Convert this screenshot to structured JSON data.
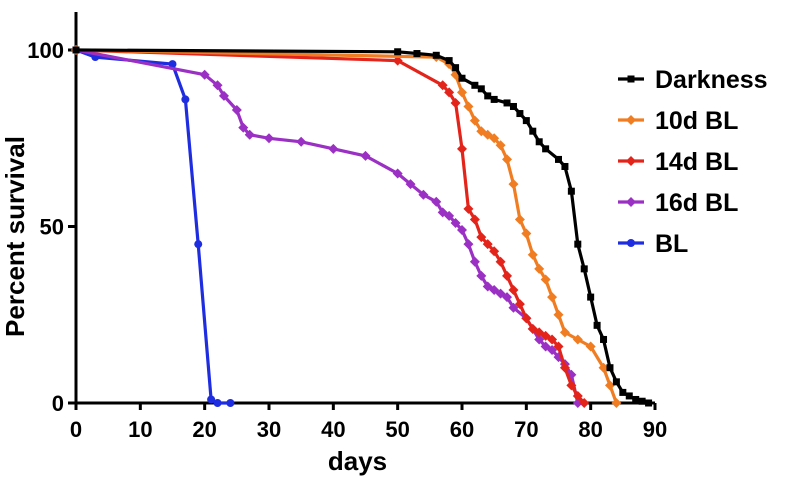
{
  "chart_data": {
    "type": "line",
    "title": "",
    "xlabel": "days",
    "ylabel": "Percent survival",
    "xlim": [
      0,
      90
    ],
    "ylim": [
      0,
      100
    ],
    "x_ticks": [
      "0",
      "10",
      "20",
      "30",
      "40",
      "50",
      "60",
      "70",
      "80",
      "90"
    ],
    "y_ticks": [
      "0",
      "50",
      "100"
    ],
    "grid": false,
    "legend_position": "right",
    "series": [
      {
        "name": "Darkness",
        "color": "#000000",
        "marker": "square",
        "points": [
          [
            0,
            100
          ],
          [
            50,
            99.5
          ],
          [
            53,
            99
          ],
          [
            56,
            98.5
          ],
          [
            58,
            97
          ],
          [
            59,
            95
          ],
          [
            60,
            92
          ],
          [
            62,
            90
          ],
          [
            63,
            89
          ],
          [
            64,
            87
          ],
          [
            65,
            86
          ],
          [
            67,
            85
          ],
          [
            68,
            84
          ],
          [
            69,
            82
          ],
          [
            70,
            80
          ],
          [
            71,
            77
          ],
          [
            72,
            74
          ],
          [
            73,
            72
          ],
          [
            75,
            69
          ],
          [
            76,
            67
          ],
          [
            77,
            60
          ],
          [
            78,
            45
          ],
          [
            79,
            38
          ],
          [
            80,
            30
          ],
          [
            81,
            22
          ],
          [
            82,
            18
          ],
          [
            83,
            10
          ],
          [
            84,
            6
          ],
          [
            85,
            3
          ],
          [
            86,
            2
          ],
          [
            87,
            1
          ],
          [
            88,
            0.5
          ],
          [
            89,
            0
          ]
        ]
      },
      {
        "name": "10d BL",
        "color": "#f07d22",
        "marker": "diamond",
        "points": [
          [
            0,
            100
          ],
          [
            56,
            98
          ],
          [
            58,
            96
          ],
          [
            59,
            93
          ],
          [
            60,
            88
          ],
          [
            61,
            84
          ],
          [
            62,
            80
          ],
          [
            63,
            77
          ],
          [
            64,
            76
          ],
          [
            65,
            75
          ],
          [
            66,
            73
          ],
          [
            67,
            69
          ],
          [
            68,
            62
          ],
          [
            69,
            52
          ],
          [
            70,
            48
          ],
          [
            71,
            42
          ],
          [
            72,
            38
          ],
          [
            73,
            35
          ],
          [
            74,
            30
          ],
          [
            75,
            25
          ],
          [
            76,
            20
          ],
          [
            78,
            18
          ],
          [
            80,
            16
          ],
          [
            82,
            10
          ],
          [
            83,
            5
          ],
          [
            84,
            0
          ]
        ]
      },
      {
        "name": "14d BL",
        "color": "#e3241b",
        "marker": "diamond",
        "points": [
          [
            0,
            100
          ],
          [
            50,
            97
          ],
          [
            57,
            90
          ],
          [
            58,
            88
          ],
          [
            59,
            85
          ],
          [
            60,
            72
          ],
          [
            61,
            55
          ],
          [
            62,
            52
          ],
          [
            63,
            47
          ],
          [
            64,
            45
          ],
          [
            65,
            43
          ],
          [
            66,
            40
          ],
          [
            67,
            36
          ],
          [
            68,
            32
          ],
          [
            69,
            28
          ],
          [
            70,
            24
          ],
          [
            71,
            21
          ],
          [
            72,
            20
          ],
          [
            73,
            19
          ],
          [
            74,
            18
          ],
          [
            75,
            16
          ],
          [
            76,
            10
          ],
          [
            77,
            5
          ],
          [
            78,
            2
          ],
          [
            79,
            0
          ]
        ]
      },
      {
        "name": "16d BL",
        "color": "#9b30c4",
        "marker": "diamond",
        "points": [
          [
            0,
            100
          ],
          [
            20,
            93
          ],
          [
            22,
            90
          ],
          [
            23,
            87
          ],
          [
            25,
            83
          ],
          [
            26,
            78
          ],
          [
            27,
            76
          ],
          [
            30,
            75
          ],
          [
            35,
            74
          ],
          [
            40,
            72
          ],
          [
            45,
            70
          ],
          [
            50,
            65
          ],
          [
            52,
            62
          ],
          [
            54,
            59
          ],
          [
            56,
            57
          ],
          [
            57,
            54
          ],
          [
            58,
            53
          ],
          [
            59,
            51
          ],
          [
            60,
            49
          ],
          [
            61,
            45
          ],
          [
            62,
            40
          ],
          [
            63,
            36
          ],
          [
            64,
            33
          ],
          [
            65,
            32
          ],
          [
            66,
            31
          ],
          [
            67,
            30
          ],
          [
            68,
            27
          ],
          [
            70,
            24
          ],
          [
            71,
            21
          ],
          [
            72,
            18
          ],
          [
            73,
            16
          ],
          [
            74,
            15
          ],
          [
            75,
            13
          ],
          [
            76,
            11
          ],
          [
            77,
            8
          ],
          [
            78,
            0
          ]
        ]
      },
      {
        "name": "BL",
        "color": "#1f2de0",
        "marker": "circle",
        "points": [
          [
            0,
            100
          ],
          [
            3,
            98
          ],
          [
            15,
            96
          ],
          [
            17,
            86
          ],
          [
            19,
            45
          ],
          [
            21,
            1
          ],
          [
            22,
            0
          ],
          [
            24,
            0
          ]
        ]
      }
    ]
  }
}
